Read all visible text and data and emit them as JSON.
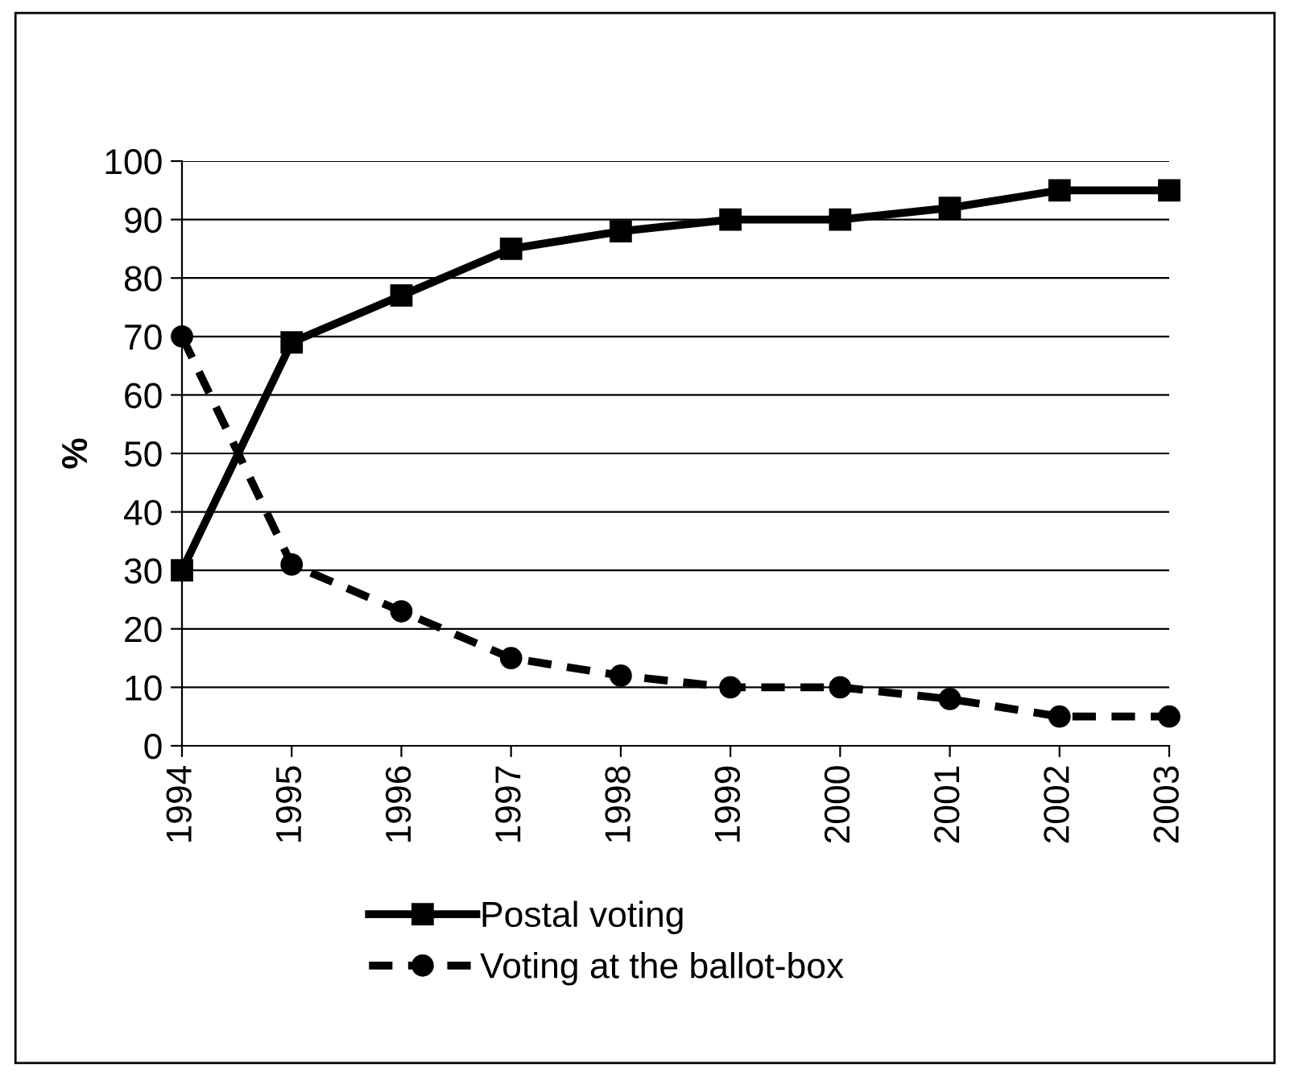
{
  "chart_data": {
    "type": "line",
    "ylabel": "%",
    "categories": [
      "1994",
      "1995",
      "1996",
      "1997",
      "1998",
      "1999",
      "2000",
      "2001",
      "2002",
      "2003"
    ],
    "series": [
      {
        "name": "Postal voting",
        "color": "#000000",
        "marker": "square",
        "line_style": "solid",
        "values": [
          30,
          69,
          77,
          85,
          88,
          90,
          90,
          92,
          95,
          95
        ]
      },
      {
        "name": "Voting at the ballot-box",
        "color": "#000000",
        "marker": "circle",
        "line_style": "dashed",
        "values": [
          70,
          31,
          23,
          15,
          12,
          10,
          10,
          8,
          5,
          5
        ]
      }
    ],
    "ylim": [
      0,
      100
    ],
    "yticks": [
      0,
      10,
      20,
      30,
      40,
      50,
      60,
      70,
      80,
      90,
      100
    ],
    "grid": "y",
    "legend": "bottom"
  }
}
